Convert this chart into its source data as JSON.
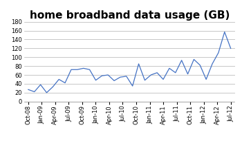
{
  "title": "home broadband data usage (GB)",
  "x_labels": [
    "Oct-08",
    "Jan-09",
    "Apr-09",
    "Jul-09",
    "Oct-09",
    "Jan-10",
    "Apr-10",
    "Jul-10",
    "Oct-10",
    "Jan-11",
    "Apr-11",
    "Jul-11",
    "Oct-11",
    "Jan-12",
    "Apr-12",
    "Jul-12"
  ],
  "values": [
    27,
    22,
    38,
    20,
    33,
    50,
    42,
    72,
    72,
    75,
    72,
    48,
    58,
    60,
    47,
    55,
    57,
    35,
    85,
    48,
    60,
    65,
    50,
    75,
    65,
    93,
    62,
    95,
    82,
    50,
    85,
    110,
    157,
    120
  ],
  "ylim": [
    0,
    180
  ],
  "yticks": [
    0,
    20,
    40,
    60,
    80,
    100,
    120,
    140,
    160,
    180
  ],
  "line_color": "#4472C4",
  "background_color": "#ffffff",
  "grid_color": "#b0b0b0",
  "title_fontsize": 11,
  "tick_fontsize": 6,
  "num_points": 34
}
